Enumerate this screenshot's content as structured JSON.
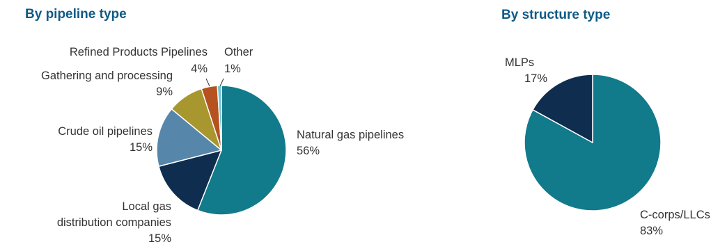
{
  "colors": {
    "title": "#0f5a86",
    "label": "#333333",
    "leader": "#333333",
    "slice_border": "#ffffff"
  },
  "chart_data": [
    {
      "type": "pie",
      "title": "By pipeline type",
      "start_angle_deg": 0,
      "direction": "clockwise",
      "slices": [
        {
          "label": "Natural gas pipelines",
          "value": 56,
          "value_label": "56%",
          "color": "#117a8b"
        },
        {
          "label": "Local gas distribution companies",
          "label_lines": [
            "Local gas",
            "distribution companies"
          ],
          "value": 15,
          "value_label": "15%",
          "color": "#0f2d4e"
        },
        {
          "label": "Crude oil pipelines",
          "value": 15,
          "value_label": "15%",
          "color": "#5687ab"
        },
        {
          "label": "Gathering and processing",
          "value": 9,
          "value_label": "9%",
          "color": "#a8962e"
        },
        {
          "label": "Refined Products Pipelines",
          "value": 4,
          "value_label": "4%",
          "color": "#b5521f"
        },
        {
          "label": "Other",
          "value": 1,
          "value_label": "1%",
          "color": "#6fc3d6"
        }
      ]
    },
    {
      "type": "pie",
      "title": "By structure type",
      "start_angle_deg": 0,
      "direction": "clockwise",
      "slices": [
        {
          "label": "C-corps/LLCs",
          "value": 83,
          "value_label": "83%",
          "color": "#117a8b"
        },
        {
          "label": "MLPs",
          "value": 17,
          "value_label": "17%",
          "color": "#0f2d4e"
        }
      ]
    }
  ]
}
